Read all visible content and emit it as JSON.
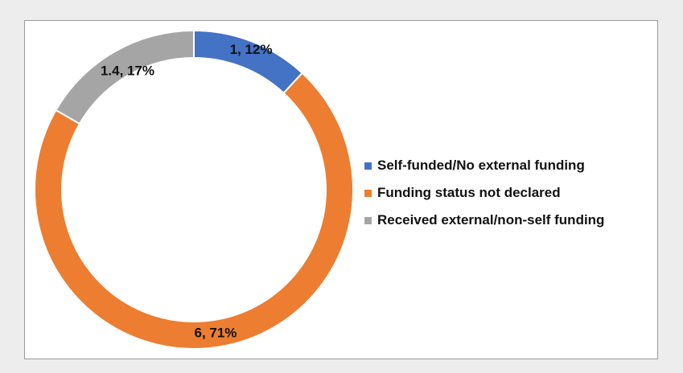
{
  "chart_data": {
    "type": "pie",
    "style": "donut",
    "categories": [
      "Self-funded/No external funding",
      "Funding status not declared",
      "Received external/non-self funding"
    ],
    "values": [
      1,
      6,
      1.4
    ],
    "percentages": [
      12,
      71,
      17
    ],
    "data_labels": [
      "1, 12%",
      "6, 71%",
      "1.4, 17%"
    ],
    "colors": [
      "#4472c4",
      "#ed7d31",
      "#a5a5a5"
    ],
    "legend_position": "right",
    "title": ""
  }
}
